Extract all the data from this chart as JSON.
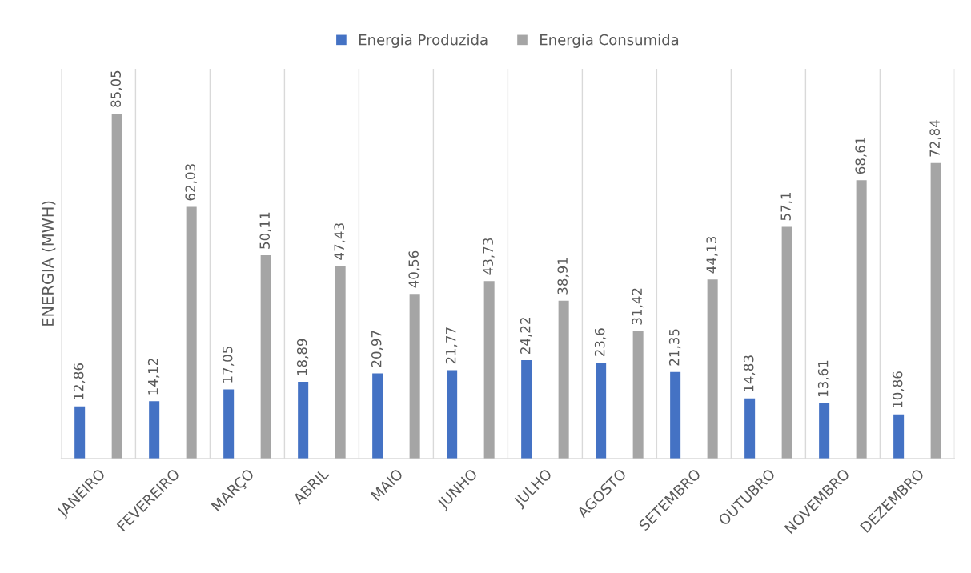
{
  "chart_data": {
    "type": "bar",
    "ylabel": "ENERGIA (MWH)",
    "categories": [
      "JANEIRO",
      "FEVEREIRO",
      "MARÇO",
      "ABRIL",
      "MAIO",
      "JUNHO",
      "JULHO",
      "AGOSTO",
      "SETEMBRO",
      "OUTUBRO",
      "NOVEMBRO",
      "DEZEMBRO"
    ],
    "series": [
      {
        "name": "Energia Produzida",
        "color": "#4472c4",
        "values": [
          12.86,
          14.12,
          17.05,
          18.89,
          20.97,
          21.77,
          24.22,
          23.6,
          21.35,
          14.83,
          13.61,
          10.86
        ],
        "value_labels": [
          "12,86",
          "14,12",
          "17,05",
          "18,89",
          "20,97",
          "21,77",
          "24,22",
          "23,6",
          "21,35",
          "14,83",
          "13,61",
          "10,86"
        ]
      },
      {
        "name": "Energia Consumida",
        "color": "#a5a5a5",
        "values": [
          85.05,
          62.03,
          50.11,
          47.43,
          40.56,
          43.73,
          38.91,
          31.42,
          44.13,
          57.1,
          68.61,
          72.84
        ],
        "value_labels": [
          "85,05",
          "62,03",
          "50,11",
          "47,43",
          "40,56",
          "43,73",
          "38,91",
          "31,42",
          "44,13",
          "57,1",
          "68,61",
          "72,84"
        ]
      }
    ],
    "grid": "x",
    "legend": "top"
  }
}
